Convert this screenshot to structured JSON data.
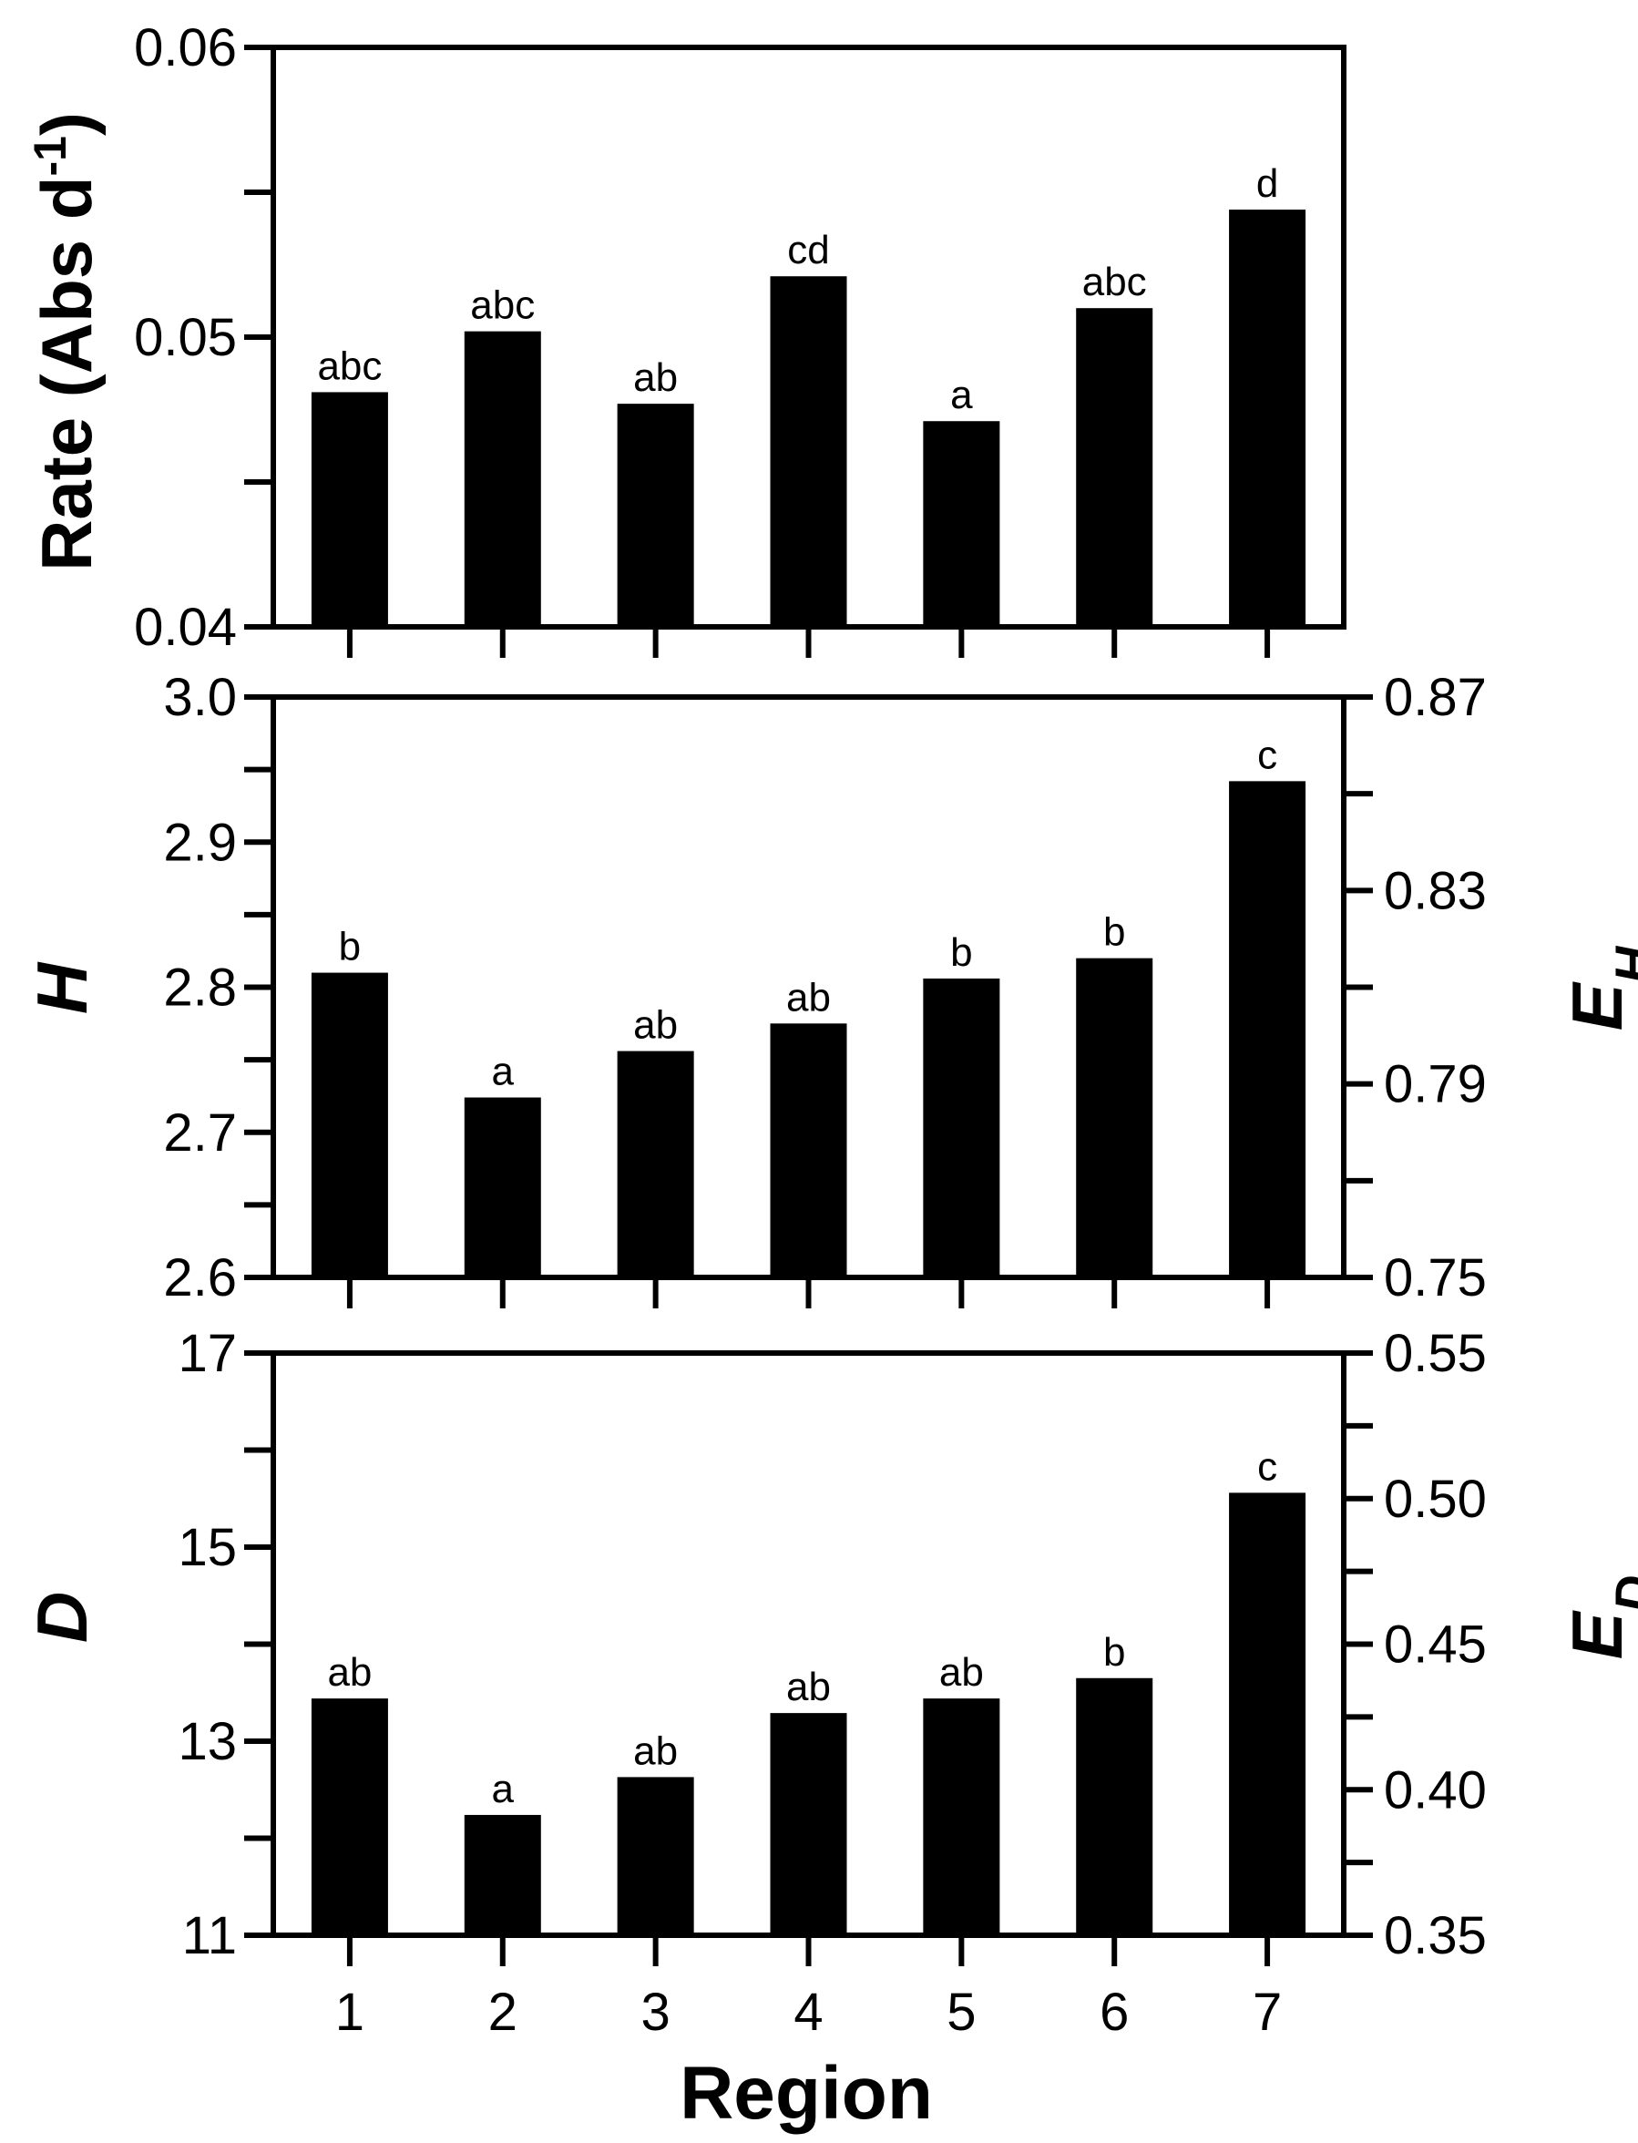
{
  "chart_data": [
    {
      "type": "bar",
      "categories": [
        "1",
        "2",
        "3",
        "4",
        "5",
        "6",
        "7"
      ],
      "values": [
        0.0481,
        0.0502,
        0.0477,
        0.0521,
        0.0471,
        0.051,
        0.0544
      ],
      "bar_labels": [
        "abc",
        "abc",
        "ab",
        "cd",
        "a",
        "abc",
        "d"
      ],
      "ylabel_main": "Rate (Abs d",
      "ylabel_sup": "-1",
      "ylabel_close": ")",
      "ylim": [
        0.04,
        0.06
      ],
      "yticks": [
        "0.04",
        "0.05",
        "0.06"
      ],
      "color": "#000000"
    },
    {
      "type": "bar",
      "categories": [
        "1",
        "2",
        "3",
        "4",
        "5",
        "6",
        "7"
      ],
      "values": [
        2.81,
        2.724,
        2.756,
        2.775,
        2.806,
        2.82,
        2.942
      ],
      "bar_labels": [
        "b",
        "a",
        "ab",
        "ab",
        "b",
        "b",
        "c"
      ],
      "ylabel": "H",
      "ylim": [
        2.6,
        3.0
      ],
      "yticks": [
        "2.6",
        "2.7",
        "2.8",
        "2.9",
        "3.0"
      ],
      "y2label_main": "E",
      "y2label_sub": "H",
      "y2lim": [
        0.75,
        0.87
      ],
      "y2ticks": [
        "0.75",
        "0.79",
        "0.83",
        "0.87"
      ],
      "color": "#000000"
    },
    {
      "type": "bar",
      "categories": [
        "1",
        "2",
        "3",
        "4",
        "5",
        "6",
        "7"
      ],
      "values": [
        13.44,
        12.24,
        12.63,
        13.29,
        13.44,
        13.65,
        15.56
      ],
      "bar_labels": [
        "ab",
        "a",
        "ab",
        "ab",
        "ab",
        "b",
        "c"
      ],
      "ylabel": "D",
      "ylim": [
        11,
        17
      ],
      "yticks": [
        "11",
        "13",
        "15",
        "17"
      ],
      "y2label_main": "E",
      "y2label_sub": "D",
      "y2lim": [
        0.35,
        0.55
      ],
      "y2ticks": [
        "0.35",
        "0.40",
        "0.45",
        "0.50",
        "0.55"
      ],
      "color": "#000000"
    }
  ],
  "xlabel": "Region"
}
